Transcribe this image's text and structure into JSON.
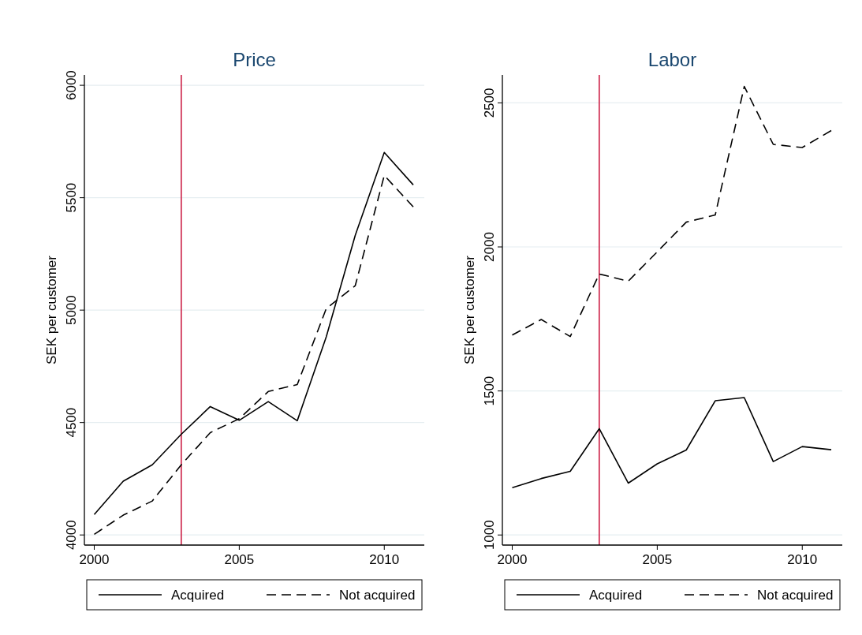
{
  "chart_data": [
    {
      "type": "line",
      "title": "Price",
      "ylabel": "SEK per customer",
      "x": [
        2000,
        2001,
        2002,
        2003,
        2004,
        2005,
        2006,
        2007,
        2008,
        2009,
        2010,
        2011
      ],
      "series": [
        {
          "name": "Acquired",
          "color": "#000000",
          "line_style": "solid",
          "values": [
            4091,
            4239,
            4312,
            4448,
            4571,
            4510,
            4593,
            4508,
            4881,
            5333,
            5701,
            5557
          ]
        },
        {
          "name": "Not acquired",
          "color": "#000000",
          "line_style": "dashed",
          "values": [
            4003,
            4088,
            4151,
            4312,
            4455,
            4517,
            4638,
            4669,
            5007,
            5109,
            5599,
            5459
          ]
        }
      ],
      "xlim": [
        1999.66,
        2011.38
      ],
      "xticks": [
        2000,
        2005,
        2010
      ],
      "ylim": [
        3955,
        6046
      ],
      "yticks": [
        4000,
        4500,
        5000,
        5500,
        6000
      ],
      "grid": "y",
      "legend": "bottom",
      "marker": "none",
      "ref_lines": [
        {
          "axis": "x",
          "value": 2003,
          "color": "#cc1e44"
        }
      ]
    },
    {
      "type": "line",
      "title": "Labor",
      "ylabel": "SEK per customer",
      "x": [
        2000,
        2001,
        2002,
        2003,
        2004,
        2005,
        2006,
        2007,
        2008,
        2009,
        2010,
        2011
      ],
      "series": [
        {
          "name": "Acquired",
          "color": "#000000",
          "line_style": "solid",
          "values": [
            1164,
            1196,
            1221,
            1369,
            1180,
            1247,
            1295,
            1466,
            1477,
            1255,
            1307,
            1296
          ]
        },
        {
          "name": "Not acquired",
          "color": "#000000",
          "line_style": "dashed",
          "values": [
            1694,
            1748,
            1689,
            1906,
            1881,
            1983,
            2086,
            2111,
            2557,
            2356,
            2345,
            2404
          ]
        }
      ],
      "xlim": [
        1999.66,
        2011.38
      ],
      "xticks": [
        2000,
        2005,
        2010
      ],
      "ylim": [
        965,
        2597
      ],
      "yticks": [
        1000,
        1500,
        2000,
        2500
      ],
      "grid": "y",
      "legend": "bottom",
      "marker": "none",
      "ref_lines": [
        {
          "axis": "x",
          "value": 2003,
          "color": "#cc1e44"
        }
      ]
    }
  ]
}
